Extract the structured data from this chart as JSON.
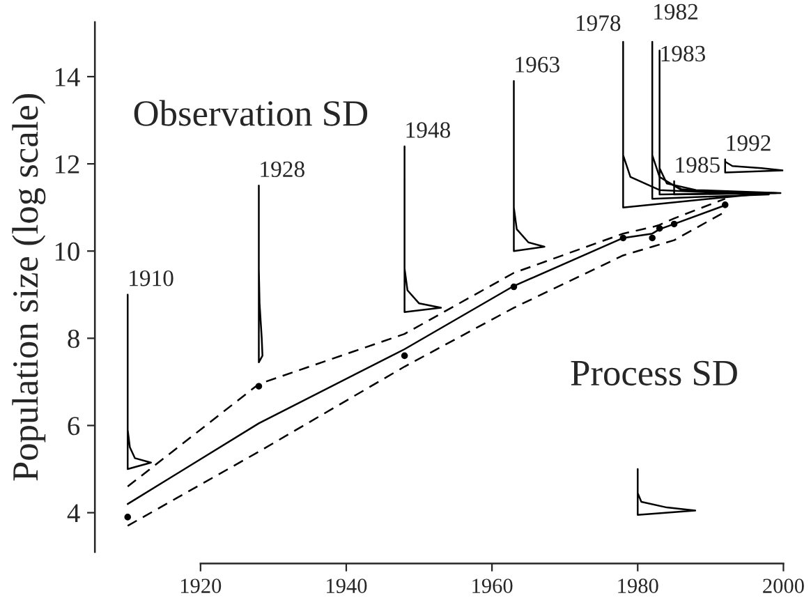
{
  "chart_data": {
    "type": "line",
    "ylabel": "Population size (log scale)",
    "xlim": [
      1905.5,
      2000
    ],
    "xticks": [
      1920,
      1940,
      1960,
      1980,
      2000
    ],
    "ylim": [
      3.1,
      15.25
    ],
    "yticks": [
      4,
      6,
      8,
      10,
      12,
      14
    ],
    "grid": false,
    "legend": false,
    "annotations": [
      "Observation SD",
      "Process SD",
      {
        "text": "1910",
        "x": 1910,
        "y": 9.0
      },
      {
        "text": "1928",
        "x": 1928,
        "y": 11.5
      },
      {
        "text": "1948",
        "x": 1948,
        "y": 12.4
      },
      {
        "text": "1963",
        "x": 1963,
        "y": 13.9
      },
      {
        "text": "1978",
        "x": 1978,
        "y": 14.85
      },
      {
        "text": "1982",
        "x": 1982,
        "y": 14.8
      },
      {
        "text": "1983",
        "x": 1983,
        "y": 14.15
      },
      {
        "text": "1985",
        "x": 1985,
        "y": 11.6
      },
      {
        "text": "1992",
        "x": 1992,
        "y": 12.1
      }
    ],
    "series": [
      {
        "color": "#000000",
        "line_style": "solid",
        "x": [
          1910,
          1928,
          1948,
          1963,
          1978,
          1982,
          1983,
          1985,
          1992
        ],
        "values": [
          4.2,
          6.05,
          7.75,
          9.2,
          10.3,
          10.4,
          10.5,
          10.62,
          11.05
        ]
      },
      {
        "color": "#000000",
        "line_style": "dashed",
        "x": [
          1910,
          1928,
          1948,
          1963,
          1978,
          1982,
          1983,
          1985,
          1992
        ],
        "values": [
          4.6,
          6.95,
          8.1,
          9.5,
          10.4,
          10.55,
          10.6,
          10.75,
          11.2
        ]
      },
      {
        "color": "#000000",
        "line_style": "dashed",
        "x": [
          1910,
          1928,
          1948,
          1963,
          1978,
          1982,
          1983,
          1985,
          1992
        ],
        "values": [
          3.7,
          5.4,
          7.35,
          8.7,
          9.9,
          10.1,
          10.15,
          10.25,
          10.9
        ]
      },
      {
        "type": "scatter",
        "color": "#000000",
        "marker": "circle",
        "x": [
          1910,
          1928,
          1948,
          1963,
          1978,
          1982,
          1983,
          1985,
          1992
        ],
        "values": [
          3.9,
          6.9,
          7.6,
          9.18,
          10.3,
          10.3,
          10.52,
          10.62,
          11.06
        ]
      },
      {
        "color": "#000000",
        "line_style": "solid",
        "x": [
          1910,
          1910,
          1913.2,
          1911,
          1910.3,
          1910
        ],
        "values": [
          9.0,
          5.0,
          5.15,
          5.25,
          5.5,
          5.9
        ]
      },
      {
        "color": "#000000",
        "line_style": "solid",
        "x": [
          1928,
          1928,
          1928.5,
          1928.4,
          1928.1,
          1928
        ],
        "values": [
          11.5,
          7.45,
          7.6,
          8.0,
          8.8,
          9.6
        ]
      },
      {
        "color": "#000000",
        "line_style": "solid",
        "x": [
          1948,
          1948,
          1953,
          1950,
          1948.4,
          1948
        ],
        "values": [
          12.4,
          8.6,
          8.7,
          8.8,
          9.1,
          9.6
        ]
      },
      {
        "color": "#000000",
        "line_style": "solid",
        "x": [
          1963,
          1963,
          1967.2,
          1965,
          1963.4,
          1963
        ],
        "values": [
          13.9,
          10.0,
          10.1,
          10.2,
          10.5,
          11.0
        ]
      },
      {
        "color": "#000000",
        "line_style": "solid",
        "x": [
          1978,
          1978,
          1996,
          1983,
          1979,
          1978
        ],
        "values": [
          14.8,
          11.0,
          11.3,
          11.4,
          11.7,
          12.2
        ]
      },
      {
        "color": "#000000",
        "line_style": "solid",
        "x": [
          1982,
          1982,
          1998,
          1986,
          1983,
          1982
        ],
        "values": [
          14.8,
          11.2,
          11.3,
          11.4,
          11.7,
          12.2
        ]
      },
      {
        "color": "#000000",
        "line_style": "solid",
        "x": [
          1983,
          1983,
          1999.6,
          1988,
          1984,
          1983
        ],
        "values": [
          14.6,
          11.3,
          11.33,
          11.4,
          11.55,
          11.9
        ]
      },
      {
        "color": "#000000",
        "line_style": "solid",
        "x": [
          1985,
          1985,
          1999,
          1990,
          1986,
          1985
        ],
        "values": [
          11.6,
          11.3,
          11.33,
          11.36,
          11.42,
          11.5
        ]
      },
      {
        "color": "#000000",
        "line_style": "solid",
        "x": [
          1992,
          1992,
          1999.9,
          1997,
          1993,
          1992
        ],
        "values": [
          12.1,
          11.8,
          11.85,
          11.9,
          11.95,
          12.05
        ]
      },
      {
        "color": "#000000",
        "line_style": "solid",
        "x": [
          1980,
          1980,
          1987.9,
          1984,
          1980.5,
          1980
        ],
        "values": [
          5.0,
          3.95,
          4.05,
          4.12,
          4.25,
          4.45
        ]
      }
    ]
  }
}
